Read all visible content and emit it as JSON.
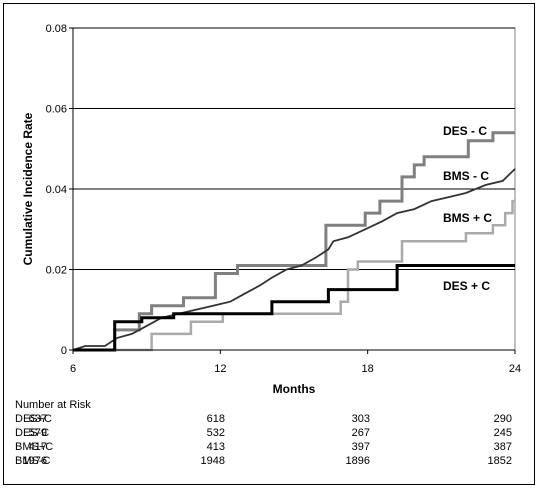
{
  "chart_data": {
    "type": "line",
    "title": "",
    "xlabel": "Months",
    "ylabel": "Cumulative Incidence Rate",
    "xlim": [
      6,
      24
    ],
    "ylim": [
      0,
      0.08
    ],
    "x_ticks": [
      "6",
      "12",
      "18",
      "24"
    ],
    "y_ticks": [
      "0",
      "0.02",
      "0.04",
      "0.06",
      "0.08"
    ],
    "grid": "horizontal",
    "step": true,
    "series": [
      {
        "name": "DES - C",
        "color": "#808080",
        "width": 3,
        "points": [
          [
            6,
            0
          ],
          [
            7.7,
            0
          ],
          [
            7.7,
            0.005
          ],
          [
            8.7,
            0.005
          ],
          [
            8.7,
            0.009
          ],
          [
            9.2,
            0.009
          ],
          [
            9.2,
            0.011
          ],
          [
            10.5,
            0.011
          ],
          [
            10.5,
            0.013
          ],
          [
            11.8,
            0.013
          ],
          [
            11.8,
            0.019
          ],
          [
            12.7,
            0.019
          ],
          [
            12.7,
            0.021
          ],
          [
            14.1,
            0.021
          ],
          [
            14.1,
            0.021
          ],
          [
            16.3,
            0.021
          ],
          [
            16.3,
            0.031
          ],
          [
            17.9,
            0.031
          ],
          [
            17.9,
            0.034
          ],
          [
            18.5,
            0.034
          ],
          [
            18.5,
            0.037
          ],
          [
            19.4,
            0.037
          ],
          [
            19.4,
            0.043
          ],
          [
            19.9,
            0.043
          ],
          [
            19.9,
            0.046
          ],
          [
            20.3,
            0.046
          ],
          [
            20.3,
            0.048
          ],
          [
            22.1,
            0.048
          ],
          [
            22.1,
            0.052
          ],
          [
            23.1,
            0.052
          ],
          [
            23.1,
            0.054
          ],
          [
            24,
            0.054
          ]
        ]
      },
      {
        "name": "BMS - C",
        "color": "#333333",
        "width": 1.8,
        "points": [
          [
            6,
            0
          ],
          [
            6.5,
            0.001
          ],
          [
            7.3,
            0.001
          ],
          [
            7.8,
            0.003
          ],
          [
            8.4,
            0.004
          ],
          [
            9.0,
            0.006
          ],
          [
            9.6,
            0.008
          ],
          [
            10.3,
            0.009
          ],
          [
            11.0,
            0.01
          ],
          [
            11.7,
            0.011
          ],
          [
            12.4,
            0.012
          ],
          [
            13.0,
            0.014
          ],
          [
            13.6,
            0.016
          ],
          [
            14.1,
            0.018
          ],
          [
            14.7,
            0.02
          ],
          [
            15.3,
            0.021
          ],
          [
            15.9,
            0.023
          ],
          [
            16.4,
            0.025
          ],
          [
            16.6,
            0.027
          ],
          [
            17.2,
            0.028
          ],
          [
            17.9,
            0.03
          ],
          [
            18.6,
            0.032
          ],
          [
            19.2,
            0.034
          ],
          [
            19.9,
            0.035
          ],
          [
            20.6,
            0.037
          ],
          [
            21.3,
            0.038
          ],
          [
            22.0,
            0.039
          ],
          [
            22.8,
            0.041
          ],
          [
            23.5,
            0.042
          ],
          [
            24,
            0.045
          ]
        ]
      },
      {
        "name": "BMS + C",
        "color": "#aaaaaa",
        "width": 2.5,
        "points": [
          [
            6,
            0
          ],
          [
            9.2,
            0
          ],
          [
            9.2,
            0.004
          ],
          [
            10.8,
            0.004
          ],
          [
            10.8,
            0.007
          ],
          [
            12.1,
            0.007
          ],
          [
            12.1,
            0.009
          ],
          [
            16.3,
            0.009
          ],
          [
            16.3,
            0.009
          ],
          [
            16.9,
            0.009
          ],
          [
            16.9,
            0.012
          ],
          [
            17.2,
            0.012
          ],
          [
            17.2,
            0.02
          ],
          [
            17.6,
            0.02
          ],
          [
            17.6,
            0.022
          ],
          [
            19.4,
            0.022
          ],
          [
            19.4,
            0.027
          ],
          [
            22.0,
            0.027
          ],
          [
            22.0,
            0.029
          ],
          [
            23.1,
            0.029
          ],
          [
            23.1,
            0.031
          ],
          [
            23.6,
            0.031
          ],
          [
            23.6,
            0.034
          ],
          [
            23.9,
            0.034
          ],
          [
            23.9,
            0.037
          ],
          [
            24,
            0.037
          ]
        ]
      },
      {
        "name": "DES + C",
        "color": "#000000",
        "width": 3,
        "points": [
          [
            6,
            0
          ],
          [
            7.7,
            0
          ],
          [
            7.7,
            0.007
          ],
          [
            8.8,
            0.007
          ],
          [
            8.8,
            0.008
          ],
          [
            10.1,
            0.008
          ],
          [
            10.1,
            0.009
          ],
          [
            14.1,
            0.009
          ],
          [
            14.1,
            0.012
          ],
          [
            16.4,
            0.012
          ],
          [
            16.4,
            0.015
          ],
          [
            19.2,
            0.015
          ],
          [
            19.2,
            0.021
          ],
          [
            24,
            0.021
          ]
        ]
      }
    ]
  },
  "risk_table": {
    "title": "Number at Risk",
    "rows": [
      {
        "name": "DES+C",
        "values": [
          "637",
          "618",
          "303",
          "290"
        ]
      },
      {
        "name": "DES-C",
        "values": [
          "579",
          "532",
          "267",
          "245"
        ]
      },
      {
        "name": "BMS+C",
        "values": [
          "417",
          "413",
          "397",
          "387"
        ]
      },
      {
        "name": "BMS-C",
        "values": [
          "1976",
          "1948",
          "1896",
          "1852"
        ]
      }
    ]
  }
}
